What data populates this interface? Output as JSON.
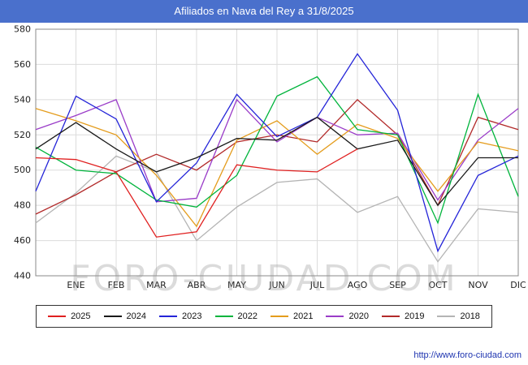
{
  "title": "Afiliados en Nava del Rey a 31/8/2025",
  "watermark": "FORO-CIUDAD.COM",
  "footer_url": "http://www.foro-ciudad.com",
  "colors": {
    "titlebar": "#4a70cc",
    "grid": "#dcdcdc",
    "axis_frame": "#888888"
  },
  "chart_data": {
    "type": "line",
    "title": "Afiliados en Nava del Rey a 31/8/2025",
    "categories": [
      "ENE",
      "FEB",
      "MAR",
      "ABR",
      "MAY",
      "JUN",
      "JUL",
      "AGO",
      "SEP",
      "OCT",
      "NOV",
      "DIC"
    ],
    "ylim": [
      440,
      580
    ],
    "yticks": [
      440,
      460,
      480,
      500,
      520,
      540,
      560,
      580
    ],
    "grid": true,
    "legend_position": "bottom",
    "series": [
      {
        "name": "2025",
        "color": "#e02020",
        "start": 507,
        "values": [
          506,
          499,
          462,
          465,
          503,
          500,
          499,
          512,
          null,
          null,
          null,
          null
        ]
      },
      {
        "name": "2024",
        "color": "#1a1a1a",
        "start": 512,
        "values": [
          527,
          512,
          499,
          507,
          518,
          517,
          530,
          512,
          517,
          480,
          507,
          507
        ]
      },
      {
        "name": "2023",
        "color": "#2424d8",
        "start": 488,
        "values": [
          542,
          529,
          482,
          504,
          543,
          519,
          530,
          566,
          534,
          454,
          497,
          508
        ]
      },
      {
        "name": "2022",
        "color": "#00b43c",
        "start": 513,
        "values": [
          500,
          498,
          483,
          479,
          497,
          542,
          553,
          523,
          520,
          470,
          543,
          485
        ]
      },
      {
        "name": "2021",
        "color": "#e49c1c",
        "start": 535,
        "values": [
          528,
          520,
          497,
          468,
          517,
          528,
          509,
          526,
          518,
          488,
          516,
          511
        ]
      },
      {
        "name": "2020",
        "color": "#9a3cc8",
        "start": 523,
        "values": [
          531,
          540,
          482,
          484,
          540,
          516,
          530,
          520,
          521,
          483,
          517,
          535
        ]
      },
      {
        "name": "2019",
        "color": "#b22a2a",
        "start": 475,
        "values": [
          486,
          499,
          509,
          500,
          516,
          520,
          516,
          540,
          520,
          480,
          530,
          523
        ]
      },
      {
        "name": "2018",
        "color": "#b4b4b4",
        "start": 470,
        "values": [
          487,
          508,
          499,
          460,
          479,
          493,
          495,
          476,
          485,
          448,
          478,
          476
        ]
      }
    ]
  }
}
